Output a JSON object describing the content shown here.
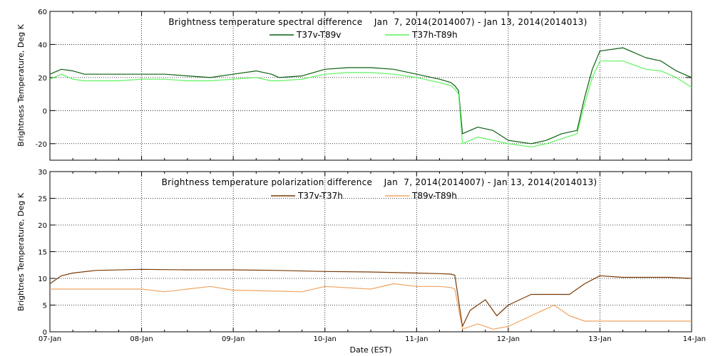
{
  "colors": {
    "t37v_t89v": "#0b5e10",
    "t37h_t89h": "#5ef25e",
    "t37v_t37h": "#7a3a05",
    "t89v_t89h": "#f0a562"
  },
  "xlabel": "Date (EST)",
  "x_tick_labels": [
    "07-Jan",
    "08-Jan",
    "09-Jan",
    "10-Jan",
    "11-Jan",
    "12-Jan",
    "13-Jan",
    "14-Jan"
  ],
  "chart_data": [
    {
      "type": "line",
      "title": "Brightness temperature spectral difference    Jan  7, 2014(2014007) - Jan 13, 2014(2014013)",
      "ylabel": "Brightness Temperature, Deg K",
      "xlim": [
        "2014-01-07",
        "2014-01-14"
      ],
      "ylim": [
        -30,
        60
      ],
      "yticks": [
        "-20",
        "0",
        "20",
        "40",
        "60"
      ],
      "ytick_values": [
        -20,
        0,
        20,
        40,
        60
      ],
      "grid": true,
      "legend_position": "top-center",
      "series": [
        {
          "name": "T37v-T89v",
          "color_key": "t37v_t89v",
          "x": [
            "2014-01-07 00:00",
            "2014-01-07 03:00",
            "2014-01-07 06:00",
            "2014-01-07 09:00",
            "2014-01-07 12:00",
            "2014-01-07 18:00",
            "2014-01-08 00:00",
            "2014-01-08 06:00",
            "2014-01-08 12:00",
            "2014-01-08 18:00",
            "2014-01-09 00:00",
            "2014-01-09 06:00",
            "2014-01-09 10:00",
            "2014-01-09 12:00",
            "2014-01-09 18:00",
            "2014-01-10 00:00",
            "2014-01-10 06:00",
            "2014-01-10 12:00",
            "2014-01-10 18:00",
            "2014-01-11 00:00",
            "2014-01-11 06:00",
            "2014-01-11 09:00",
            "2014-01-11 10:00",
            "2014-01-11 11:00",
            "2014-01-11 12:00",
            "2014-01-11 16:00",
            "2014-01-11 20:00",
            "2014-01-12 00:00",
            "2014-01-12 06:00",
            "2014-01-12 10:00",
            "2014-01-12 14:00",
            "2014-01-12 18:00",
            "2014-01-12 20:00",
            "2014-01-12 22:00",
            "2014-01-13 00:00",
            "2014-01-13 06:00",
            "2014-01-13 12:00",
            "2014-01-13 16:00",
            "2014-01-13 20:00",
            "2014-01-14 00:00"
          ],
          "values": [
            22,
            25,
            24,
            22,
            22,
            22,
            22,
            22,
            21,
            20,
            22,
            24,
            22,
            20,
            21,
            25,
            26,
            26,
            25,
            22,
            19,
            17,
            15,
            12,
            -14,
            -10,
            -12,
            -18,
            -20,
            -18,
            -14,
            -12,
            8,
            25,
            36,
            38,
            32,
            30,
            24,
            20
          ]
        },
        {
          "name": "T37h-T89h",
          "color_key": "t37h_t89h",
          "x": [
            "2014-01-07 00:00",
            "2014-01-07 03:00",
            "2014-01-07 06:00",
            "2014-01-07 09:00",
            "2014-01-07 12:00",
            "2014-01-07 18:00",
            "2014-01-08 00:00",
            "2014-01-08 06:00",
            "2014-01-08 12:00",
            "2014-01-08 18:00",
            "2014-01-09 00:00",
            "2014-01-09 06:00",
            "2014-01-09 10:00",
            "2014-01-09 12:00",
            "2014-01-09 18:00",
            "2014-01-10 00:00",
            "2014-01-10 06:00",
            "2014-01-10 12:00",
            "2014-01-10 18:00",
            "2014-01-11 00:00",
            "2014-01-11 06:00",
            "2014-01-11 09:00",
            "2014-01-11 10:00",
            "2014-01-11 11:00",
            "2014-01-11 12:00",
            "2014-01-11 16:00",
            "2014-01-11 20:00",
            "2014-01-12 00:00",
            "2014-01-12 06:00",
            "2014-01-12 10:00",
            "2014-01-12 14:00",
            "2014-01-12 18:00",
            "2014-01-12 20:00",
            "2014-01-12 22:00",
            "2014-01-13 00:00",
            "2014-01-13 06:00",
            "2014-01-13 12:00",
            "2014-01-13 16:00",
            "2014-01-13 20:00",
            "2014-01-14 00:00"
          ],
          "values": [
            19,
            22,
            19,
            18,
            18,
            18,
            19,
            19,
            18,
            18,
            19,
            20,
            18,
            18,
            19,
            22,
            23,
            23,
            22,
            20,
            17,
            15,
            13,
            10,
            -20,
            -16,
            -18,
            -20,
            -22,
            -20,
            -17,
            -14,
            4,
            20,
            30,
            30,
            25,
            24,
            20,
            14
          ]
        }
      ]
    },
    {
      "type": "line",
      "title": "Brightness temperature polarization difference    Jan  7, 2014(2014007) - Jan 13, 2014(2014013)",
      "ylabel": "Brightnes Temperature, Deg K",
      "xlim": [
        "2014-01-07",
        "2014-01-14"
      ],
      "ylim": [
        0,
        30
      ],
      "yticks": [
        "0",
        "5",
        "10",
        "15",
        "20",
        "25",
        "30"
      ],
      "ytick_values": [
        0,
        5,
        10,
        15,
        20,
        25,
        30
      ],
      "grid": true,
      "legend_position": "top-center",
      "series": [
        {
          "name": "T37v-T37h",
          "color_key": "t37v_t37h",
          "x": [
            "2014-01-07 00:00",
            "2014-01-07 03:00",
            "2014-01-07 06:00",
            "2014-01-07 12:00",
            "2014-01-08 00:00",
            "2014-01-08 12:00",
            "2014-01-09 00:00",
            "2014-01-09 12:00",
            "2014-01-10 00:00",
            "2014-01-10 12:00",
            "2014-01-11 00:00",
            "2014-01-11 06:00",
            "2014-01-11 09:00",
            "2014-01-11 10:00",
            "2014-01-11 12:00",
            "2014-01-11 14:00",
            "2014-01-11 18:00",
            "2014-01-11 21:00",
            "2014-01-12 00:00",
            "2014-01-12 03:00",
            "2014-01-12 06:00",
            "2014-01-12 12:00",
            "2014-01-12 16:00",
            "2014-01-12 20:00",
            "2014-01-13 00:00",
            "2014-01-13 06:00",
            "2014-01-13 12:00",
            "2014-01-13 18:00",
            "2014-01-14 00:00"
          ],
          "values": [
            9,
            10.5,
            11,
            11.5,
            11.7,
            11.6,
            11.6,
            11.5,
            11.3,
            11.2,
            11,
            10.9,
            10.8,
            10.6,
            1,
            4,
            6,
            3,
            5,
            6,
            7,
            7,
            7,
            9,
            10.5,
            10.2,
            10.2,
            10.2,
            10
          ]
        },
        {
          "name": "T89v-T89h",
          "color_key": "t89v_t89h",
          "x": [
            "2014-01-07 00:00",
            "2014-01-07 03:00",
            "2014-01-07 06:00",
            "2014-01-07 12:00",
            "2014-01-08 00:00",
            "2014-01-08 06:00",
            "2014-01-08 12:00",
            "2014-01-08 18:00",
            "2014-01-09 00:00",
            "2014-01-09 12:00",
            "2014-01-09 18:00",
            "2014-01-10 00:00",
            "2014-01-10 12:00",
            "2014-01-10 18:00",
            "2014-01-11 00:00",
            "2014-01-11 06:00",
            "2014-01-11 09:00",
            "2014-01-11 10:00",
            "2014-01-11 12:00",
            "2014-01-11 16:00",
            "2014-01-11 20:00",
            "2014-01-12 00:00",
            "2014-01-12 06:00",
            "2014-01-12 12:00",
            "2014-01-12 16:00",
            "2014-01-12 20:00",
            "2014-01-13 00:00",
            "2014-01-13 12:00",
            "2014-01-14 00:00"
          ],
          "values": [
            8,
            8,
            8,
            8,
            8,
            7.5,
            8,
            8.5,
            7.8,
            7.6,
            7.5,
            8.5,
            8,
            9,
            8.5,
            8.5,
            8.3,
            8,
            0.5,
            1.5,
            0.5,
            1,
            3,
            5,
            3,
            2,
            2,
            2,
            2
          ]
        }
      ]
    }
  ]
}
